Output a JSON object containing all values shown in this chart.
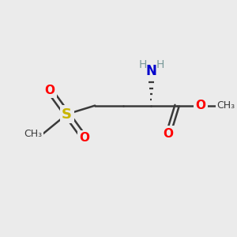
{
  "bg_color": "#ebebeb",
  "bond_color": "#3a3a3a",
  "bond_width": 1.8,
  "S_color": "#c8b400",
  "O_color": "#ff0000",
  "N_color": "#0000cc",
  "H_color": "#7a9a9a",
  "figsize": [
    3.0,
    3.0
  ],
  "dpi": 100,
  "fs": 11,
  "fs_small": 9,
  "xlim": [
    0,
    10
  ],
  "ylim": [
    0,
    10
  ]
}
